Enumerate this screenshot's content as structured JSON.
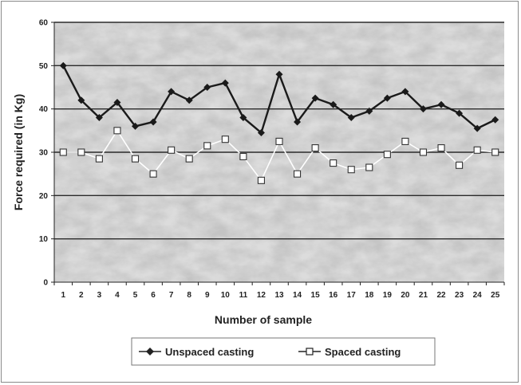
{
  "chart_data": {
    "type": "line",
    "title": "",
    "xlabel": "Number of sample",
    "ylabel": "Force required (in Kg)",
    "x": [
      1,
      2,
      3,
      4,
      5,
      6,
      7,
      8,
      9,
      10,
      11,
      12,
      13,
      14,
      15,
      16,
      17,
      18,
      19,
      20,
      21,
      22,
      23,
      24,
      25
    ],
    "ylim": [
      0,
      60
    ],
    "yticks": [
      0,
      10,
      20,
      30,
      40,
      50,
      60
    ],
    "grid": true,
    "legend_position": "bottom-center",
    "background": "marbled gray",
    "series": [
      {
        "name": "Unspaced casting",
        "marker": "filled-diamond",
        "color": "#1a1a1a",
        "values": [
          50,
          42,
          38,
          41.5,
          36,
          37,
          44,
          42,
          45,
          46,
          38,
          34.5,
          48,
          37,
          42.5,
          41,
          38,
          39.5,
          42.5,
          44,
          40,
          41,
          39,
          35.5,
          37.5
        ]
      },
      {
        "name": "Spaced casting",
        "marker": "open-square",
        "color": "#ffffff",
        "values": [
          30,
          30,
          28.5,
          35,
          28.5,
          25,
          30.5,
          28.5,
          31.5,
          33,
          29,
          23.5,
          32.5,
          25,
          31,
          27.5,
          26,
          26.5,
          29.5,
          32.5,
          30,
          31,
          27,
          30.5,
          30
        ]
      }
    ]
  }
}
